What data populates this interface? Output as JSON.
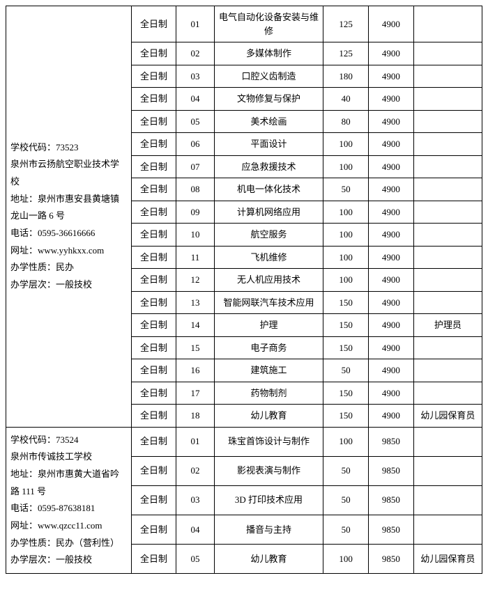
{
  "schools": [
    {
      "info_lines": [
        "学校代码：73523",
        "泉州市云扬航空职业技术学校",
        "地址：泉州市惠安县黄塘镇龙山一路 6 号",
        "电话：0595-36616666",
        "网址：www.yyhkxx.com",
        "办学性质：民办",
        "办学层次：一般技校"
      ],
      "rows": [
        {
          "type": "全日制",
          "code": "01",
          "major": "电气自动化设备安装与维修",
          "cap": "125",
          "fee": "4900",
          "note": ""
        },
        {
          "type": "全日制",
          "code": "02",
          "major": "多媒体制作",
          "cap": "125",
          "fee": "4900",
          "note": ""
        },
        {
          "type": "全日制",
          "code": "03",
          "major": "口腔义齿制造",
          "cap": "180",
          "fee": "4900",
          "note": ""
        },
        {
          "type": "全日制",
          "code": "04",
          "major": "文物修复与保护",
          "cap": "40",
          "fee": "4900",
          "note": ""
        },
        {
          "type": "全日制",
          "code": "05",
          "major": "美术绘画",
          "cap": "80",
          "fee": "4900",
          "note": ""
        },
        {
          "type": "全日制",
          "code": "06",
          "major": "平面设计",
          "cap": "100",
          "fee": "4900",
          "note": ""
        },
        {
          "type": "全日制",
          "code": "07",
          "major": "应急救援技术",
          "cap": "100",
          "fee": "4900",
          "note": ""
        },
        {
          "type": "全日制",
          "code": "08",
          "major": "机电一体化技术",
          "cap": "50",
          "fee": "4900",
          "note": ""
        },
        {
          "type": "全日制",
          "code": "09",
          "major": "计算机网络应用",
          "cap": "100",
          "fee": "4900",
          "note": ""
        },
        {
          "type": "全日制",
          "code": "10",
          "major": "航空服务",
          "cap": "100",
          "fee": "4900",
          "note": ""
        },
        {
          "type": "全日制",
          "code": "11",
          "major": "飞机维修",
          "cap": "100",
          "fee": "4900",
          "note": ""
        },
        {
          "type": "全日制",
          "code": "12",
          "major": "无人机应用技术",
          "cap": "100",
          "fee": "4900",
          "note": ""
        },
        {
          "type": "全日制",
          "code": "13",
          "major": "智能网联汽车技术应用",
          "cap": "150",
          "fee": "4900",
          "note": ""
        },
        {
          "type": "全日制",
          "code": "14",
          "major": "护理",
          "cap": "150",
          "fee": "4900",
          "note": "护理员"
        },
        {
          "type": "全日制",
          "code": "15",
          "major": "电子商务",
          "cap": "150",
          "fee": "4900",
          "note": ""
        },
        {
          "type": "全日制",
          "code": "16",
          "major": "建筑施工",
          "cap": "50",
          "fee": "4900",
          "note": ""
        },
        {
          "type": "全日制",
          "code": "17",
          "major": "药物制剂",
          "cap": "150",
          "fee": "4900",
          "note": ""
        },
        {
          "type": "全日制",
          "code": "18",
          "major": "幼儿教育",
          "cap": "150",
          "fee": "4900",
          "note": "幼儿园保育员"
        }
      ]
    },
    {
      "info_lines": [
        "学校代码：73524",
        "泉州市传诚技工学校",
        "地址：泉州市惠黄大道省吟路 111 号",
        "电话：0595-87638181",
        "网址：www.qzcc11.com",
        "办学性质：民办（营利性）",
        "办学层次：一般技校"
      ],
      "rows": [
        {
          "type": "全日制",
          "code": "01",
          "major": "珠宝首饰设计与制作",
          "cap": "100",
          "fee": "9850",
          "note": ""
        },
        {
          "type": "全日制",
          "code": "02",
          "major": "影视表演与制作",
          "cap": "50",
          "fee": "9850",
          "note": ""
        },
        {
          "type": "全日制",
          "code": "03",
          "major": "3D 打印技术应用",
          "cap": "50",
          "fee": "9850",
          "note": ""
        },
        {
          "type": "全日制",
          "code": "04",
          "major": "播音与主持",
          "cap": "50",
          "fee": "9850",
          "note": ""
        },
        {
          "type": "全日制",
          "code": "05",
          "major": "幼儿教育",
          "cap": "100",
          "fee": "9850",
          "note": "幼儿园保育员"
        }
      ]
    }
  ]
}
